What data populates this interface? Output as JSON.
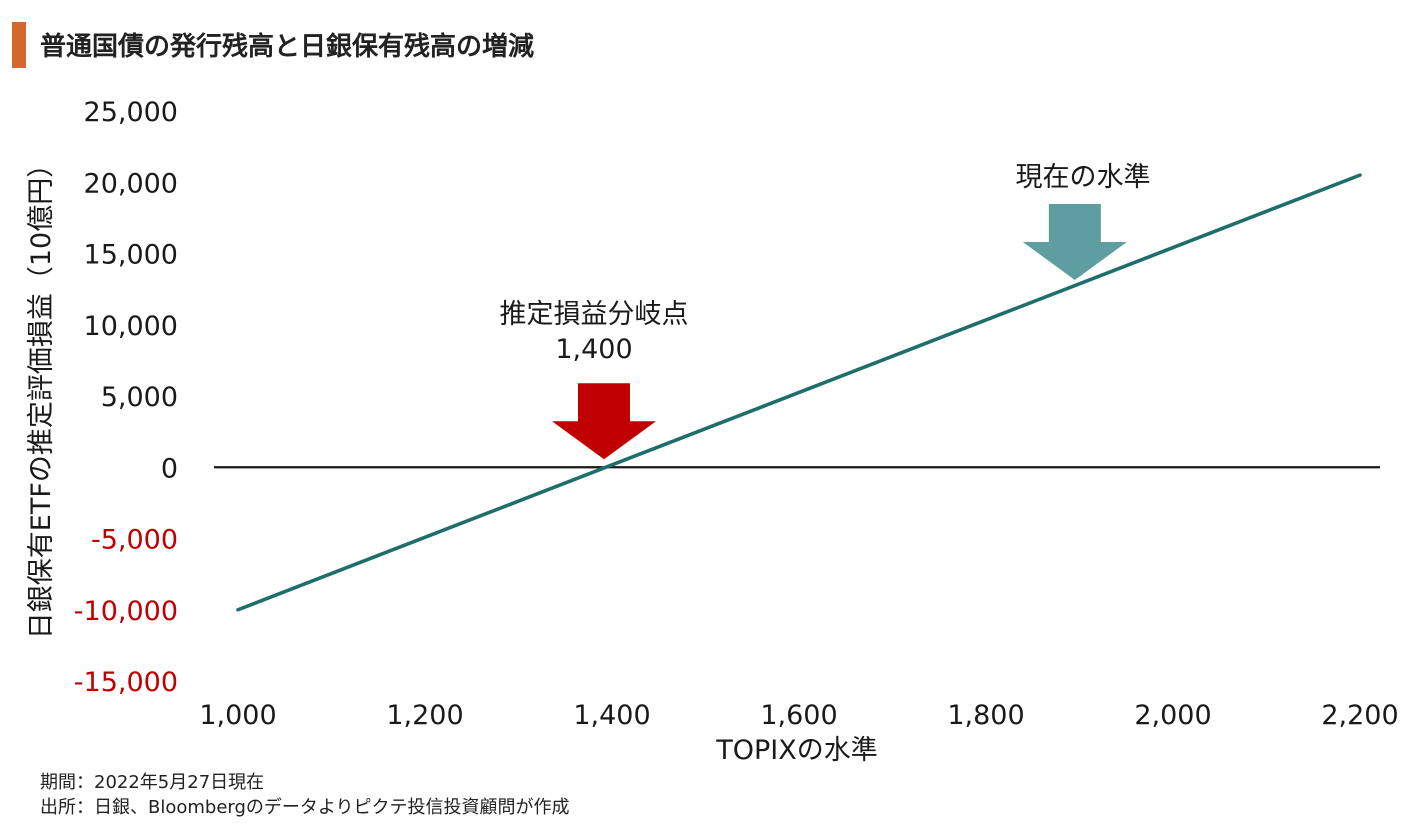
{
  "header": {
    "title": "普通国債の発行残高と日銀保有残高の増減"
  },
  "annotations": {
    "breakeven_label": "推定損益分岐点",
    "breakeven_value_label": "1,400",
    "current_label": "現在の水準"
  },
  "source": {
    "period": "期間：2022年5月27日現在",
    "origin": "出所：日銀、Bloombergのデータよりピクテ投信投資顧問が作成"
  },
  "colors": {
    "accent": "#d2692b",
    "line": "#1f6e6e",
    "negative_tick": "#c00000",
    "breakeven_arrow": "#c00000",
    "current_arrow": "#5f9ea0"
  },
  "chart_data": {
    "type": "line",
    "xlabel": "TOPIXの水準",
    "ylabel": "日銀保有ETFの推定評価損益（10億円）",
    "xlim": [
      1000,
      2200
    ],
    "ylim": [
      -15000,
      25000
    ],
    "x_ticks": [
      "1,000",
      "1,200",
      "1,400",
      "1,600",
      "1,800",
      "2,000",
      "2,200"
    ],
    "x_tick_values": [
      1000,
      1200,
      1400,
      1600,
      1800,
      2000,
      2200
    ],
    "y_ticks": [
      "25,000",
      "20,000",
      "15,000",
      "10,000",
      "5,000",
      "0",
      "-5,000",
      "-10,000",
      "-15,000"
    ],
    "y_tick_values": [
      25000,
      20000,
      15000,
      10000,
      5000,
      0,
      -5000,
      -10000,
      -15000
    ],
    "series": [
      {
        "x": [
          1000,
          2200
        ],
        "y": [
          -10000,
          20500
        ]
      }
    ],
    "reference_line_y": 0,
    "markers": [
      {
        "label": "推定損益分岐点",
        "x": 1400,
        "y": 0
      },
      {
        "label": "現在の水準",
        "x": 1910,
        "y": 13000
      }
    ],
    "grid": false
  }
}
